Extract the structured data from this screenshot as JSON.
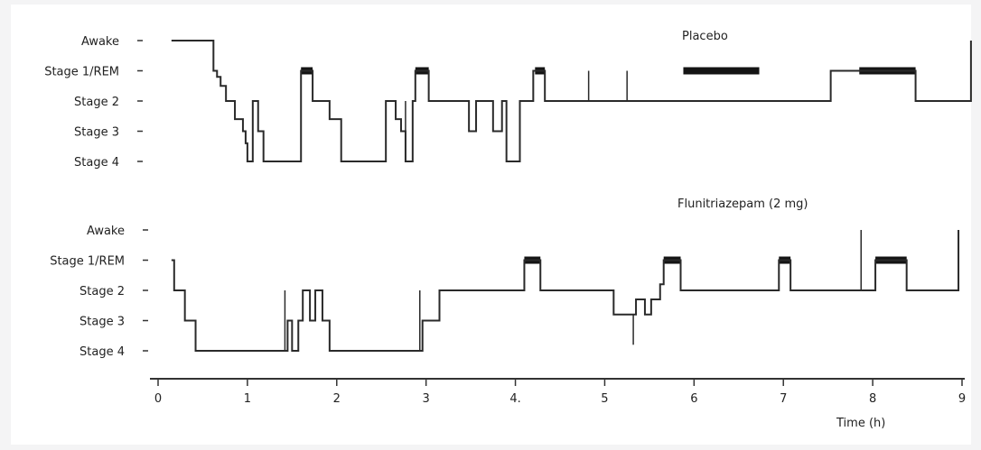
{
  "chart_data": {
    "type": "line",
    "xlabel": "Time (h)",
    "xlim": [
      0,
      9
    ],
    "x_ticks": [
      "0",
      "1",
      "2",
      "3",
      "4.",
      "5",
      "6",
      "7",
      "8",
      "9"
    ],
    "stage_labels": [
      "Awake",
      "Stage 1/REM",
      "Stage 2",
      "Stage 3",
      "Stage 4"
    ],
    "panels": [
      {
        "title": "Placebo",
        "stage_labels": [
          "Awake",
          "Stage 1/REM",
          "Stage 2",
          "Stage 3",
          "Stage 4"
        ],
        "steps": [
          [
            0.15,
            0
          ],
          [
            0.62,
            1
          ],
          [
            0.66,
            1.2
          ],
          [
            0.7,
            1.5
          ],
          [
            0.76,
            2
          ],
          [
            0.86,
            2.6
          ],
          [
            0.95,
            3
          ],
          [
            0.98,
            3.4
          ],
          [
            1.0,
            4
          ],
          [
            1.06,
            2
          ],
          [
            1.12,
            3
          ],
          [
            1.18,
            4
          ],
          [
            1.6,
            1
          ],
          [
            1.73,
            2
          ],
          [
            1.92,
            2.6
          ],
          [
            2.05,
            4
          ],
          [
            2.55,
            2
          ],
          [
            2.66,
            2.6
          ],
          [
            2.72,
            3
          ],
          [
            2.77,
            4
          ],
          [
            2.85,
            2
          ],
          [
            2.88,
            1
          ],
          [
            3.03,
            2
          ],
          [
            3.48,
            3
          ],
          [
            3.56,
            2
          ],
          [
            3.75,
            3
          ],
          [
            3.85,
            2
          ],
          [
            3.9,
            4
          ],
          [
            4.05,
            2
          ],
          [
            4.2,
            1
          ],
          [
            4.33,
            2
          ],
          [
            7.45,
            2
          ],
          [
            7.53,
            1
          ],
          [
            8.48,
            2
          ],
          [
            9.1,
            0
          ]
        ],
        "rem_blocks": [
          [
            1.6,
            1.73
          ],
          [
            2.88,
            3.03
          ],
          [
            4.22,
            4.33
          ],
          [
            5.88,
            6.73
          ],
          [
            7.85,
            8.48
          ]
        ],
        "spikes": [
          [
            2.77,
            2.0,
            4.0
          ],
          [
            4.82,
            1.0,
            2.0
          ],
          [
            5.25,
            1.0,
            2.0
          ]
        ]
      },
      {
        "title": "Flunitriazepam (2 mg)",
        "stage_labels": [
          "Awake",
          "Stage 1/REM",
          "Stage 2",
          "Stage 3",
          "Stage 4"
        ],
        "steps": [
          [
            0.15,
            1
          ],
          [
            0.18,
            2
          ],
          [
            0.3,
            3
          ],
          [
            0.42,
            4
          ],
          [
            1.45,
            3
          ],
          [
            1.5,
            4
          ],
          [
            1.57,
            3
          ],
          [
            1.62,
            2
          ],
          [
            1.7,
            3
          ],
          [
            1.76,
            2
          ],
          [
            1.84,
            3
          ],
          [
            1.92,
            4
          ],
          [
            2.96,
            3
          ],
          [
            3.15,
            2
          ],
          [
            4.1,
            1
          ],
          [
            4.28,
            2
          ],
          [
            5.1,
            2.8
          ],
          [
            5.35,
            2.3
          ],
          [
            5.45,
            2.8
          ],
          [
            5.52,
            2.3
          ],
          [
            5.62,
            1.8
          ],
          [
            5.66,
            1
          ],
          [
            5.85,
            2
          ],
          [
            6.95,
            1
          ],
          [
            7.08,
            2
          ],
          [
            7.87,
            2
          ],
          [
            8.03,
            1
          ],
          [
            8.38,
            2
          ],
          [
            8.96,
            0
          ]
        ],
        "rem_blocks": [
          [
            4.1,
            4.28
          ],
          [
            5.66,
            5.85
          ],
          [
            6.95,
            7.08
          ],
          [
            8.03,
            8.38
          ]
        ],
        "spikes": [
          [
            1.42,
            2.0,
            4.0
          ],
          [
            2.93,
            2.0,
            4.0
          ],
          [
            5.32,
            2.8,
            3.8
          ],
          [
            7.87,
            0.0,
            2.0
          ]
        ]
      }
    ]
  }
}
